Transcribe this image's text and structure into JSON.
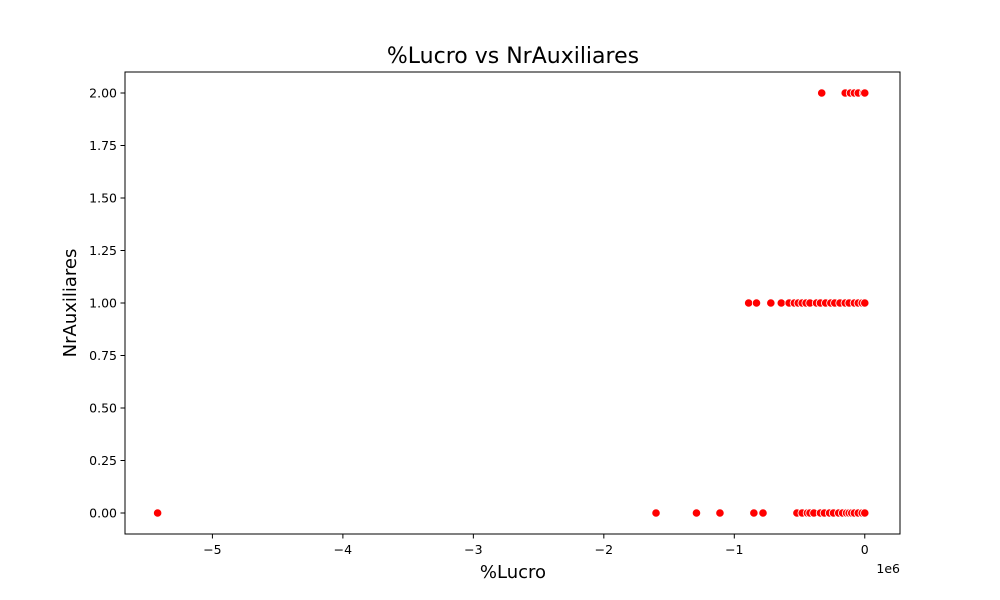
{
  "chart_data": {
    "type": "scatter",
    "title": "%Lucro vs NrAuxiliares",
    "xlabel": "%Lucro",
    "ylabel": "NrAuxiliares",
    "x_offset_label": "1e6",
    "x_scale": 1000000,
    "xlim": [
      -5670000,
      270000
    ],
    "ylim": [
      -0.1,
      2.1
    ],
    "x_ticks": [
      -5000000,
      -4000000,
      -3000000,
      -2000000,
      -1000000,
      0
    ],
    "x_tick_labels": [
      "−5",
      "−4",
      "−3",
      "−2",
      "−1",
      "0"
    ],
    "y_ticks": [
      0.0,
      0.25,
      0.5,
      0.75,
      1.0,
      1.25,
      1.5,
      1.75,
      2.0
    ],
    "y_tick_labels": [
      "0.00",
      "0.25",
      "0.50",
      "0.75",
      "1.00",
      "1.25",
      "1.50",
      "1.75",
      "2.00"
    ],
    "grid": false,
    "marker_color": "#ff0000",
    "points": [
      {
        "x": -5420000,
        "y": 0
      },
      {
        "x": -1600000,
        "y": 0
      },
      {
        "x": -1290000,
        "y": 0
      },
      {
        "x": -1110000,
        "y": 0
      },
      {
        "x": -850000,
        "y": 0
      },
      {
        "x": -780000,
        "y": 0
      },
      {
        "x": -520000,
        "y": 0
      },
      {
        "x": -480000,
        "y": 0
      },
      {
        "x": -440000,
        "y": 0
      },
      {
        "x": -420000,
        "y": 0
      },
      {
        "x": -390000,
        "y": 0
      },
      {
        "x": -340000,
        "y": 0
      },
      {
        "x": -310000,
        "y": 0
      },
      {
        "x": -270000,
        "y": 0
      },
      {
        "x": -240000,
        "y": 0
      },
      {
        "x": -200000,
        "y": 0
      },
      {
        "x": -170000,
        "y": 0
      },
      {
        "x": -140000,
        "y": 0
      },
      {
        "x": -120000,
        "y": 0
      },
      {
        "x": -100000,
        "y": 0
      },
      {
        "x": -80000,
        "y": 0
      },
      {
        "x": -50000,
        "y": 0
      },
      {
        "x": -20000,
        "y": 0
      },
      {
        "x": 0,
        "y": 0
      },
      {
        "x": -890000,
        "y": 1
      },
      {
        "x": -830000,
        "y": 1
      },
      {
        "x": -720000,
        "y": 1
      },
      {
        "x": -640000,
        "y": 1
      },
      {
        "x": -580000,
        "y": 1
      },
      {
        "x": -540000,
        "y": 1
      },
      {
        "x": -510000,
        "y": 1
      },
      {
        "x": -480000,
        "y": 1
      },
      {
        "x": -450000,
        "y": 1
      },
      {
        "x": -420000,
        "y": 1
      },
      {
        "x": -370000,
        "y": 1
      },
      {
        "x": -340000,
        "y": 1
      },
      {
        "x": -300000,
        "y": 1
      },
      {
        "x": -260000,
        "y": 1
      },
      {
        "x": -230000,
        "y": 1
      },
      {
        "x": -190000,
        "y": 1
      },
      {
        "x": -150000,
        "y": 1
      },
      {
        "x": -120000,
        "y": 1
      },
      {
        "x": -80000,
        "y": 1
      },
      {
        "x": -50000,
        "y": 1
      },
      {
        "x": -20000,
        "y": 1
      },
      {
        "x": 0,
        "y": 1
      },
      {
        "x": -330000,
        "y": 2
      },
      {
        "x": -150000,
        "y": 2
      },
      {
        "x": -110000,
        "y": 2
      },
      {
        "x": -80000,
        "y": 2
      },
      {
        "x": -50000,
        "y": 2
      },
      {
        "x": -10000,
        "y": 2
      },
      {
        "x": 0,
        "y": 2
      }
    ]
  }
}
